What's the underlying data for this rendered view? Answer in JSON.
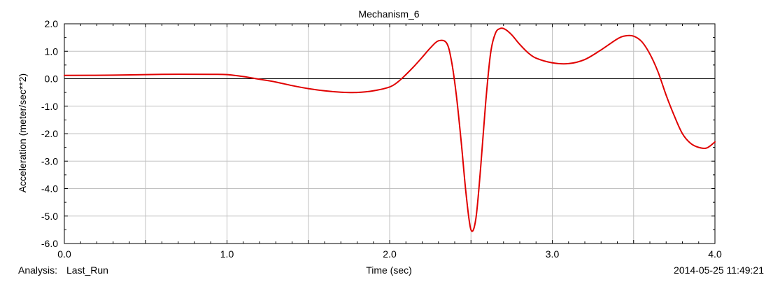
{
  "chart_data": {
    "type": "line",
    "title": "Mechanism_6",
    "xlabel": "Time (sec)",
    "ylabel": "Acceleration (meter/sec**2)",
    "xlim": [
      0.0,
      4.0
    ],
    "ylim": [
      -6.0,
      2.0
    ],
    "x_ticks": [
      "0.0",
      "1.0",
      "2.0",
      "3.0",
      "4.0"
    ],
    "y_ticks": [
      "2.0",
      "1.0",
      "0.0",
      "-1.0",
      "-2.0",
      "-3.0",
      "-4.0",
      "-5.0",
      "-6.0"
    ],
    "grid": true,
    "series": [
      {
        "color": "#e00000",
        "x": [
          0.0,
          0.3,
          0.6,
          0.9,
          1.0,
          1.1,
          1.2,
          1.3,
          1.4,
          1.5,
          1.6,
          1.7,
          1.8,
          1.9,
          2.0,
          2.05,
          2.1,
          2.15,
          2.2,
          2.25,
          2.3,
          2.35,
          2.38,
          2.41,
          2.44,
          2.47,
          2.5,
          2.53,
          2.56,
          2.59,
          2.62,
          2.65,
          2.68,
          2.71,
          2.75,
          2.8,
          2.85,
          2.9,
          3.0,
          3.1,
          3.2,
          3.3,
          3.4,
          3.45,
          3.5,
          3.55,
          3.6,
          3.65,
          3.7,
          3.75,
          3.8,
          3.85,
          3.9,
          3.95,
          4.0
        ],
        "y": [
          0.12,
          0.13,
          0.16,
          0.16,
          0.15,
          0.08,
          -0.02,
          -0.12,
          -0.25,
          -0.36,
          -0.44,
          -0.49,
          -0.5,
          -0.44,
          -0.3,
          -0.12,
          0.15,
          0.45,
          0.78,
          1.12,
          1.38,
          1.3,
          0.65,
          -0.6,
          -2.3,
          -4.2,
          -5.5,
          -5.1,
          -3.2,
          -0.9,
          0.9,
          1.65,
          1.83,
          1.8,
          1.6,
          1.25,
          0.95,
          0.75,
          0.58,
          0.55,
          0.7,
          1.05,
          1.45,
          1.56,
          1.55,
          1.35,
          0.9,
          0.25,
          -0.6,
          -1.35,
          -2.0,
          -2.35,
          -2.5,
          -2.52,
          -2.3
        ]
      }
    ]
  },
  "footer": {
    "analysis_label": "Analysis:",
    "analysis_value": "Last_Run",
    "timestamp": "2014-05-25 11:49:21"
  },
  "colors": {
    "grid": "#c0c0c0",
    "axis": "#000000",
    "zero_line": "#000000",
    "series": "#e00000"
  }
}
